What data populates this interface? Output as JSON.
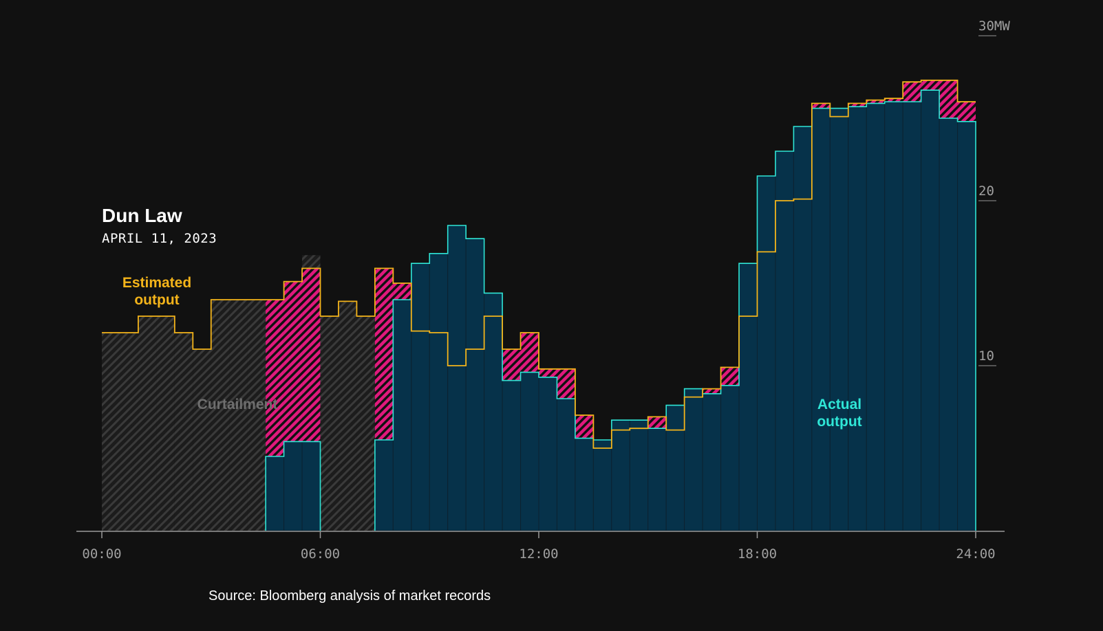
{
  "title": "Dun Law",
  "subtitle": "APRIL 11, 2023",
  "source": "Source: Bloomberg analysis of market records",
  "labels": {
    "estimated": "Estimated\noutput",
    "curtailment": "Curtailment",
    "actual": "Actual\noutput"
  },
  "colors": {
    "background": "#111111",
    "estimated": "#f4b41a",
    "actual_line": "#2fe6d6",
    "actual_fill": "#06324a",
    "curtailment_hatch": "#3a3a3a",
    "shortfall_hatch": "#e0197d",
    "axis": "#9a9a9a",
    "tick_text": "#a0a0a0"
  },
  "chart_data": {
    "type": "area",
    "step": "30min",
    "x_unit": "hour",
    "y_unit": "MW",
    "xlim": [
      0,
      24
    ],
    "ylim": [
      0,
      30
    ],
    "x_ticks": [
      0,
      6,
      12,
      18,
      24
    ],
    "x_tick_labels": [
      "00:00",
      "06:00",
      "12:00",
      "18:00",
      "24:00"
    ],
    "y_ticks": [
      10,
      20,
      30
    ],
    "y_tick_labels": [
      "10",
      "20",
      "30MW"
    ],
    "series": [
      {
        "name": "Estimated output",
        "values": [
          12.0,
          12.0,
          13.0,
          13.0,
          12.0,
          11.0,
          14.0,
          14.0,
          14.0,
          14.0,
          15.1,
          15.9,
          13.0,
          13.9,
          13.0,
          15.9,
          15.0,
          12.1,
          12.0,
          10.0,
          11.0,
          13.0,
          11.0,
          12.0,
          9.8,
          9.8,
          7.0,
          5.0,
          6.1,
          6.2,
          6.9,
          6.1,
          8.1,
          8.6,
          9.9,
          13.0,
          16.9,
          20.0,
          20.1,
          25.9,
          25.1,
          25.9,
          26.1,
          26.2,
          27.2,
          27.3,
          27.3,
          26.0
        ],
        "area_labels": [
          "Estimated",
          "output"
        ]
      },
      {
        "name": "Actual output",
        "values": [
          null,
          null,
          null,
          null,
          null,
          null,
          null,
          null,
          null,
          4.5,
          5.4,
          5.4,
          null,
          null,
          null,
          5.5,
          14.0,
          16.2,
          16.8,
          18.5,
          17.7,
          14.4,
          9.1,
          9.6,
          9.3,
          8.0,
          5.6,
          5.5,
          6.7,
          6.7,
          6.2,
          7.6,
          8.6,
          8.3,
          8.8,
          16.2,
          21.5,
          23.0,
          24.5,
          25.6,
          25.6,
          25.7,
          25.9,
          26.0,
          26.0,
          26.7,
          25.0,
          24.8
        ],
        "area_labels": [
          "Actual",
          "output"
        ]
      }
    ],
    "annotations": [
      "Curtailment"
    ],
    "grid": false,
    "legend": "none",
    "source": "Source: Bloomberg analysis of market records"
  }
}
